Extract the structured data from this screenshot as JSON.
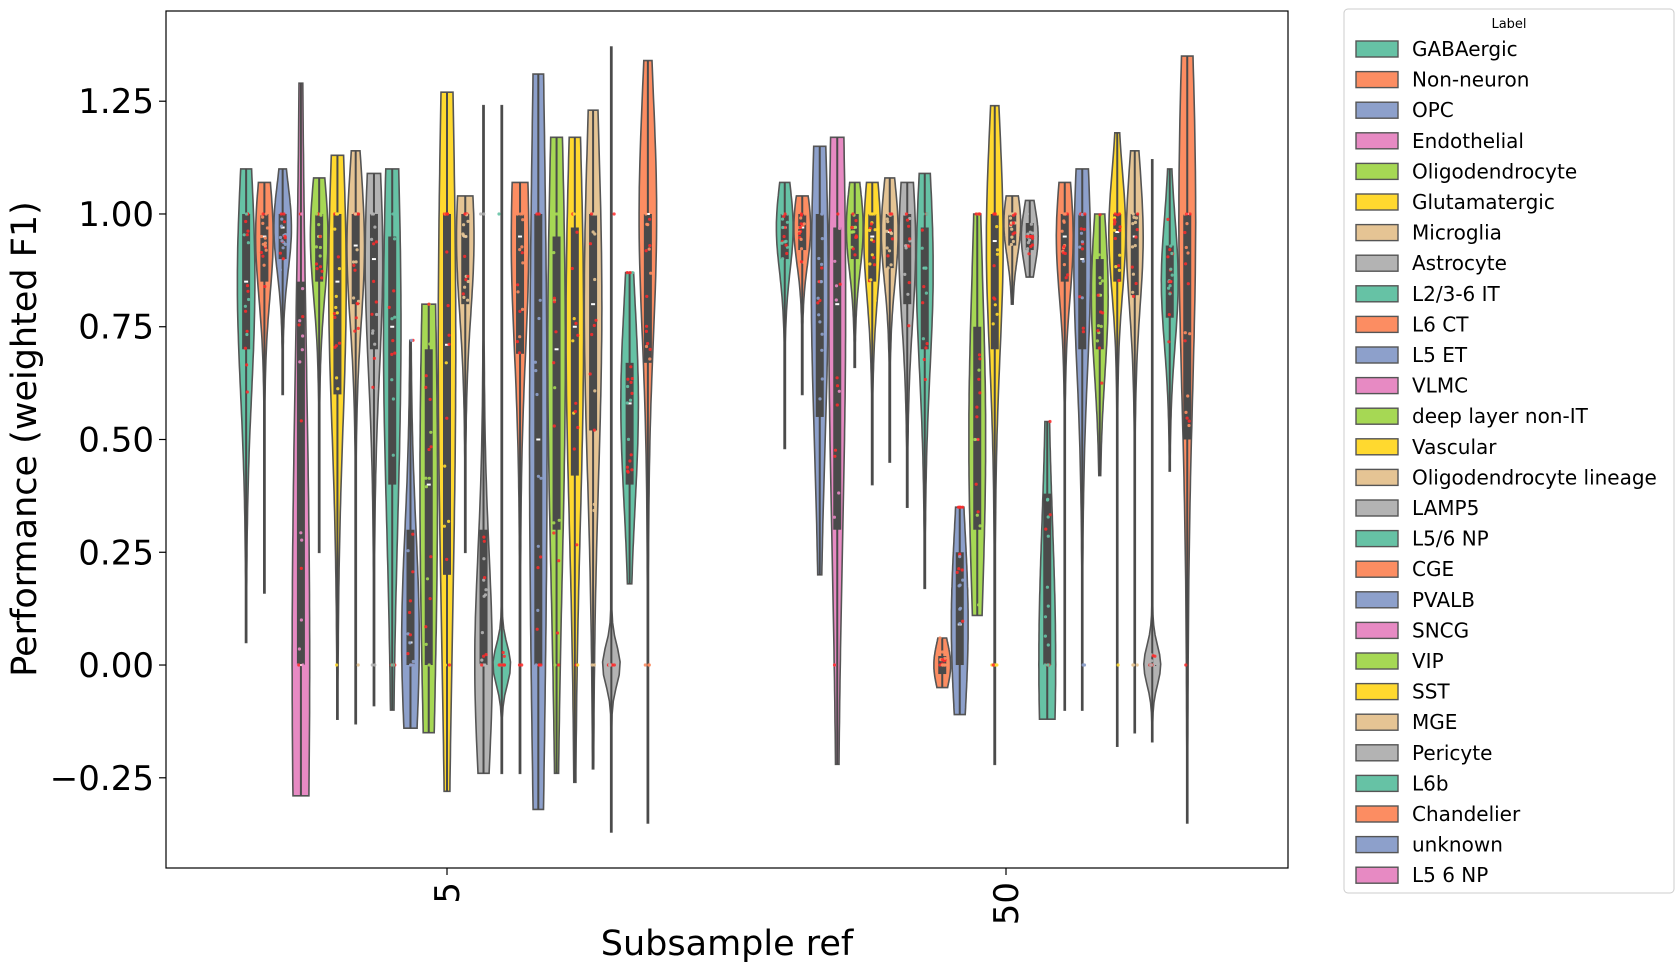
{
  "chart_data": {
    "type": "violin",
    "xlabel": "Subsample ref",
    "ylabel": "Performance (weighted F1)",
    "x_ticks": [
      "5",
      "50"
    ],
    "y_ticks": [
      "−0.25",
      "0.00",
      "0.25",
      "0.50",
      "0.75",
      "1.00",
      "1.25"
    ],
    "y_tick_values": [
      -0.25,
      0.0,
      0.25,
      0.5,
      0.75,
      1.0,
      1.25
    ],
    "ylim": [
      -0.45,
      1.45
    ],
    "grid": false,
    "legend": {
      "title": "Label",
      "placement": "outside-right",
      "items": [
        {
          "label": "GABAergic",
          "color": "#66c2a5"
        },
        {
          "label": "Non-neuron",
          "color": "#fc8d62"
        },
        {
          "label": "OPC",
          "color": "#8da0cb"
        },
        {
          "label": "Endothelial",
          "color": "#e78ac3"
        },
        {
          "label": "Oligodendrocyte",
          "color": "#a6d854"
        },
        {
          "label": "Glutamatergic",
          "color": "#ffd92f"
        },
        {
          "label": "Microglia",
          "color": "#e5c494"
        },
        {
          "label": "Astrocyte",
          "color": "#b3b3b3"
        },
        {
          "label": "L2/3-6 IT",
          "color": "#66c2a5"
        },
        {
          "label": "L6 CT",
          "color": "#fc8d62"
        },
        {
          "label": "L5 ET",
          "color": "#8da0cb"
        },
        {
          "label": "VLMC",
          "color": "#e78ac3"
        },
        {
          "label": "deep layer non-IT",
          "color": "#a6d854"
        },
        {
          "label": "Vascular",
          "color": "#ffd92f"
        },
        {
          "label": "Oligodendrocyte lineage",
          "color": "#e5c494"
        },
        {
          "label": "LAMP5",
          "color": "#b3b3b3"
        },
        {
          "label": "L5/6 NP",
          "color": "#66c2a5"
        },
        {
          "label": "CGE",
          "color": "#fc8d62"
        },
        {
          "label": "PVALB",
          "color": "#8da0cb"
        },
        {
          "label": "SNCG",
          "color": "#e78ac3"
        },
        {
          "label": "VIP",
          "color": "#a6d854"
        },
        {
          "label": "SST",
          "color": "#ffd92f"
        },
        {
          "label": "MGE",
          "color": "#e5c494"
        },
        {
          "label": "Pericyte",
          "color": "#b3b3b3"
        },
        {
          "label": "L6b",
          "color": "#66c2a5"
        },
        {
          "label": "Chandelier",
          "color": "#fc8d62"
        },
        {
          "label": "unknown",
          "color": "#8da0cb"
        },
        {
          "label": "L5 6 NP",
          "color": "#e78ac3"
        }
      ]
    },
    "point_color": "#ff2a2a",
    "groups": [
      {
        "x": "5",
        "violins": [
          {
            "label": "GABAergic",
            "min": 0.05,
            "q1": 0.7,
            "median": 0.85,
            "q3": 1.0,
            "max": 1.1
          },
          {
            "label": "Non-neuron",
            "min": 0.16,
            "q1": 0.85,
            "median": 0.95,
            "q3": 1.0,
            "max": 1.07
          },
          {
            "label": "OPC",
            "min": 0.6,
            "q1": 0.9,
            "median": 0.97,
            "q3": 1.0,
            "max": 1.1
          },
          {
            "label": "Endothelial",
            "min": -0.29,
            "q1": 0.0,
            "median": 0.0,
            "q3": 0.85,
            "max": 1.29
          },
          {
            "label": "Oligodendrocyte",
            "min": 0.25,
            "q1": 0.85,
            "median": 0.95,
            "q3": 1.0,
            "max": 1.08
          },
          {
            "label": "Glutamatergic",
            "min": -0.12,
            "q1": 0.6,
            "median": 0.85,
            "q3": 1.0,
            "max": 1.13
          },
          {
            "label": "Microglia",
            "min": -0.13,
            "q1": 0.8,
            "median": 0.93,
            "q3": 1.0,
            "max": 1.14
          },
          {
            "label": "Astrocyte",
            "min": -0.09,
            "q1": 0.7,
            "median": 0.9,
            "q3": 1.0,
            "max": 1.09
          },
          {
            "label": "L2/3-6 IT",
            "min": -0.1,
            "q1": 0.4,
            "median": 0.75,
            "q3": 0.95,
            "max": 1.1
          },
          {
            "label": "L5 ET",
            "min": -0.14,
            "q1": 0.0,
            "median": 0.05,
            "q3": 0.3,
            "max": 0.72
          },
          {
            "label": "deep layer non-IT",
            "min": -0.15,
            "q1": 0.0,
            "median": 0.4,
            "q3": 0.7,
            "max": 0.8
          },
          {
            "label": "Vascular",
            "min": -0.28,
            "q1": 0.2,
            "median": 0.71,
            "q3": 1.0,
            "max": 1.27
          },
          {
            "label": "Oligodendrocyte lineage",
            "min": 0.25,
            "q1": 0.8,
            "median": 0.95,
            "q3": 1.0,
            "max": 1.04
          },
          {
            "label": "LAMP5",
            "min": -0.24,
            "q1": 0.0,
            "median": 0.0,
            "q3": 0.3,
            "max": 1.24
          },
          {
            "label": "L5/6 NP",
            "min": -0.24,
            "q1": 0.0,
            "median": 0.0,
            "q3": 0.0,
            "max": 1.24
          },
          {
            "label": "CGE",
            "min": -0.24,
            "q1": 0.69,
            "median": 0.95,
            "q3": 1.0,
            "max": 1.07
          },
          {
            "label": "PVALB",
            "min": -0.32,
            "q1": 0.0,
            "median": 0.5,
            "q3": 1.0,
            "max": 1.31
          },
          {
            "label": "VIP",
            "min": -0.24,
            "q1": 0.3,
            "median": 0.7,
            "q3": 0.95,
            "max": 1.17
          },
          {
            "label": "SST",
            "min": -0.26,
            "q1": 0.42,
            "median": 0.75,
            "q3": 0.97,
            "max": 1.17
          },
          {
            "label": "MGE",
            "min": -0.23,
            "q1": 0.52,
            "median": 0.8,
            "q3": 1.0,
            "max": 1.23
          },
          {
            "label": "Pericyte",
            "min": -0.37,
            "q1": 0.0,
            "median": 0.0,
            "q3": 0.0,
            "max": 1.37
          },
          {
            "label": "L6b",
            "min": 0.18,
            "q1": 0.4,
            "median": 0.58,
            "q3": 0.67,
            "max": 0.87
          },
          {
            "label": "Chandelier",
            "min": -0.35,
            "q1": 0.67,
            "median": 1.0,
            "q3": 1.0,
            "max": 1.34
          }
        ]
      },
      {
        "x": "50",
        "violins": [
          {
            "label": "GABAergic",
            "min": 0.48,
            "q1": 0.9,
            "median": 0.97,
            "q3": 1.0,
            "max": 1.07
          },
          {
            "label": "Non-neuron",
            "min": 0.6,
            "q1": 0.92,
            "median": 0.97,
            "q3": 1.0,
            "max": 1.04
          },
          {
            "label": "OPC",
            "min": 0.2,
            "q1": 0.55,
            "median": 0.85,
            "q3": 1.0,
            "max": 1.15
          },
          {
            "label": "Endothelial",
            "min": -0.22,
            "q1": 0.3,
            "median": 0.8,
            "q3": 0.97,
            "max": 1.17
          },
          {
            "label": "Oligodendrocyte",
            "min": 0.66,
            "q1": 0.9,
            "median": 0.97,
            "q3": 1.0,
            "max": 1.07
          },
          {
            "label": "Glutamatergic",
            "min": 0.4,
            "q1": 0.85,
            "median": 0.95,
            "q3": 1.0,
            "max": 1.07
          },
          {
            "label": "Microglia",
            "min": 0.45,
            "q1": 0.88,
            "median": 0.96,
            "q3": 1.0,
            "max": 1.08
          },
          {
            "label": "Astrocyte",
            "min": 0.35,
            "q1": 0.8,
            "median": 0.93,
            "q3": 1.0,
            "max": 1.07
          },
          {
            "label": "L2/3-6 IT",
            "min": 0.17,
            "q1": 0.7,
            "median": 0.88,
            "q3": 0.97,
            "max": 1.09
          },
          {
            "label": "L6 CT",
            "min": -0.05,
            "q1": -0.02,
            "median": 0.0,
            "q3": 0.02,
            "max": 0.06
          },
          {
            "label": "L5 ET",
            "min": -0.11,
            "q1": 0.0,
            "median": 0.09,
            "q3": 0.25,
            "max": 0.35
          },
          {
            "label": "deep layer non-IT",
            "min": 0.11,
            "q1": 0.3,
            "median": 0.5,
            "q3": 0.75,
            "max": 1.0
          },
          {
            "label": "Vascular",
            "min": -0.22,
            "q1": 0.7,
            "median": 0.94,
            "q3": 1.0,
            "max": 1.24
          },
          {
            "label": "Oligodendrocyte lineage",
            "min": 0.8,
            "q1": 0.93,
            "median": 0.98,
            "q3": 1.0,
            "max": 1.04
          },
          {
            "label": "LAMP5",
            "min": 0.86,
            "q1": 0.92,
            "median": 0.95,
            "q3": 0.98,
            "max": 1.03
          },
          {
            "label": "L5/6 NP",
            "min": -0.12,
            "q1": 0.0,
            "median": 0.0,
            "q3": 0.38,
            "max": 0.54
          },
          {
            "label": "CGE",
            "min": -0.1,
            "q1": 0.85,
            "median": 0.95,
            "q3": 1.0,
            "max": 1.07
          },
          {
            "label": "PVALB",
            "min": -0.1,
            "q1": 0.7,
            "median": 0.9,
            "q3": 1.0,
            "max": 1.1
          },
          {
            "label": "VIP",
            "min": 0.42,
            "q1": 0.7,
            "median": 0.82,
            "q3": 0.9,
            "max": 1.0
          },
          {
            "label": "SST",
            "min": -0.18,
            "q1": 0.85,
            "median": 0.96,
            "q3": 1.0,
            "max": 1.18
          },
          {
            "label": "MGE",
            "min": -0.15,
            "q1": 0.82,
            "median": 0.95,
            "q3": 1.0,
            "max": 1.14
          },
          {
            "label": "Pericyte",
            "min": -0.17,
            "q1": 0.0,
            "median": 0.0,
            "q3": 0.0,
            "max": 1.12
          },
          {
            "label": "L6b",
            "min": 0.43,
            "q1": 0.77,
            "median": 0.85,
            "q3": 0.93,
            "max": 1.1
          },
          {
            "label": "Chandelier",
            "min": -0.35,
            "q1": 0.5,
            "median": 1.0,
            "q3": 1.0,
            "max": 1.35
          }
        ]
      }
    ]
  }
}
